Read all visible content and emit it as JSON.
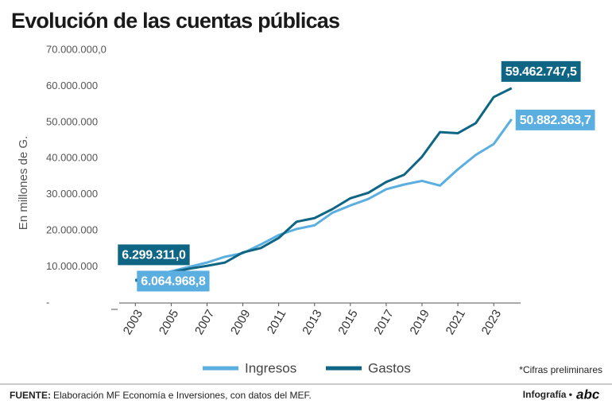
{
  "chart_data": {
    "type": "line",
    "title": "Evolución de las cuentas públicas",
    "y_label": "En millones de G.",
    "x": [
      2003,
      2004,
      2005,
      2006,
      2007,
      2008,
      2009,
      2010,
      2011,
      2012,
      2013,
      2014,
      2015,
      2016,
      2017,
      2018,
      2019,
      2020,
      2021,
      2022,
      2023,
      2024
    ],
    "xlim": [
      2002.1,
      2024.5
    ],
    "xticks": [
      2003,
      2005,
      2007,
      2009,
      2011,
      2013,
      2015,
      2017,
      2019,
      2021,
      2023
    ],
    "ylim": [
      0,
      70000000
    ],
    "yticks": [
      {
        "value": 0,
        "label": "-"
      },
      {
        "value": 10000000,
        "label": "10.000.000"
      },
      {
        "value": 20000000,
        "label": "20.000.000"
      },
      {
        "value": 30000000,
        "label": "30.000.000"
      },
      {
        "value": 40000000,
        "label": "40.000.000"
      },
      {
        "value": 50000000,
        "label": "50.000.000"
      },
      {
        "value": 60000000,
        "label": "60.000.000"
      },
      {
        "value": 70000000,
        "label": "70.000.000,0"
      }
    ],
    "grid": false,
    "series": [
      {
        "name": "Ingresos",
        "color": "#5aaee0",
        "values": [
          6064968.8,
          7500000,
          8800000,
          10000000,
          11200000,
          12800000,
          13800000,
          16200000,
          18800000,
          20500000,
          21500000,
          25000000,
          27000000,
          28800000,
          31500000,
          32800000,
          33800000,
          32500000,
          37000000,
          41000000,
          44000000,
          50882363.7
        ],
        "value_labels": [
          "6.064.968,8",
          null,
          null,
          null,
          null,
          null,
          null,
          null,
          null,
          null,
          null,
          null,
          null,
          null,
          null,
          null,
          null,
          null,
          null,
          null,
          null,
          "50.882.363,7"
        ]
      },
      {
        "name": "Gastos",
        "color": "#0e6584",
        "values": [
          6299311.0,
          7600000,
          8500000,
          9500000,
          10300000,
          11200000,
          14000000,
          15200000,
          18000000,
          22500000,
          23500000,
          26000000,
          29000000,
          30500000,
          33500000,
          35500000,
          40500000,
          47300000,
          47000000,
          49800000,
          57000000,
          59462747.5
        ],
        "value_labels": [
          "6.299.311,0",
          null,
          null,
          null,
          null,
          null,
          null,
          null,
          null,
          null,
          null,
          null,
          null,
          null,
          null,
          null,
          null,
          null,
          null,
          null,
          null,
          "59.462.747,5"
        ]
      }
    ],
    "legend": "bottom",
    "note": "*Cifras preliminares"
  },
  "footer": {
    "source_label": "FUENTE:",
    "source": "Elaboración MF Economía e Inversiones, con datos del MEF.",
    "credit": "Infografía •",
    "logo": "abc"
  }
}
